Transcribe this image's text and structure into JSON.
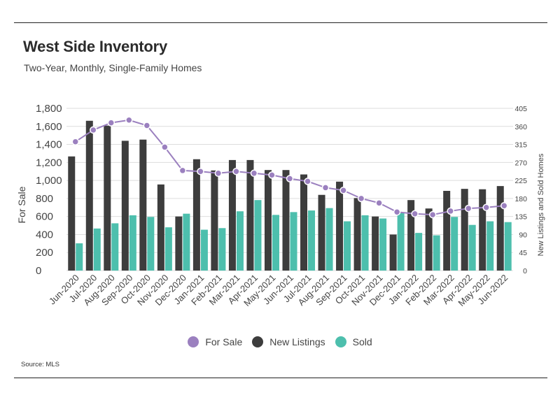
{
  "title": "West Side Inventory",
  "subtitle": "Two-Year, Monthly, Single-Family Homes",
  "source": "Source:  MLS",
  "colors": {
    "for_sale": "#9b80bf",
    "new_listings": "#3d3d3d",
    "sold": "#4dbfad",
    "grid": "#dddddd"
  },
  "chart_data": {
    "type": "bar",
    "title": "West Side Inventory",
    "subtitle": "Two-Year, Monthly, Single-Family Homes",
    "ylabel": "For Sale",
    "y2label": "New Listings and Sold Homes",
    "ylim": [
      0,
      1800
    ],
    "y2lim": [
      0,
      405
    ],
    "y_ticks": [
      "0",
      "200",
      "400",
      "600",
      "800",
      "1,000",
      "1,200",
      "1,400",
      "1,600",
      "1,800"
    ],
    "y2_ticks": [
      "0",
      "45",
      "90",
      "135",
      "180",
      "225",
      "270",
      "315",
      "360",
      "405"
    ],
    "grid": true,
    "legend_position": "bottom",
    "categories": [
      "Jun-2020",
      "Jul-2020",
      "Aug-2020",
      "Sep-2020",
      "Oct-2020",
      "Nov-2020",
      "Dec-2020",
      "Jan-2021",
      "Feb-2021",
      "Mar-2021",
      "Apr-2021",
      "May-2021",
      "Jun-2021",
      "Jul-2021",
      "Aug-2021",
      "Sep-2021",
      "Oct-2021",
      "Nov-2021",
      "Dec-2021",
      "Jan-2022",
      "Feb-2022",
      "Mar-2022",
      "Apr-2022",
      "May-2022",
      "Jun-2022"
    ],
    "series": [
      {
        "name": "For Sale",
        "type": "line",
        "axis": "left",
        "values": [
          1430,
          1560,
          1640,
          1670,
          1610,
          1370,
          1110,
          1100,
          1080,
          1100,
          1080,
          1060,
          1020,
          990,
          920,
          890,
          800,
          750,
          650,
          630,
          620,
          660,
          690,
          700,
          720
        ]
      },
      {
        "name": "New Listings",
        "type": "bar",
        "axis": "right",
        "values": [
          285,
          374,
          362,
          324,
          327,
          215,
          135,
          278,
          250,
          276,
          276,
          251,
          251,
          240,
          189,
          222,
          181,
          135,
          90,
          176,
          155,
          199,
          204,
          203,
          211
        ]
      },
      {
        "name": "Sold",
        "type": "bar",
        "axis": "right",
        "values": [
          68,
          105,
          118,
          138,
          134,
          108,
          142,
          102,
          106,
          148,
          176,
          139,
          146,
          150,
          156,
          123,
          138,
          130,
          144,
          94,
          88,
          134,
          114,
          123,
          121
        ]
      }
    ]
  }
}
